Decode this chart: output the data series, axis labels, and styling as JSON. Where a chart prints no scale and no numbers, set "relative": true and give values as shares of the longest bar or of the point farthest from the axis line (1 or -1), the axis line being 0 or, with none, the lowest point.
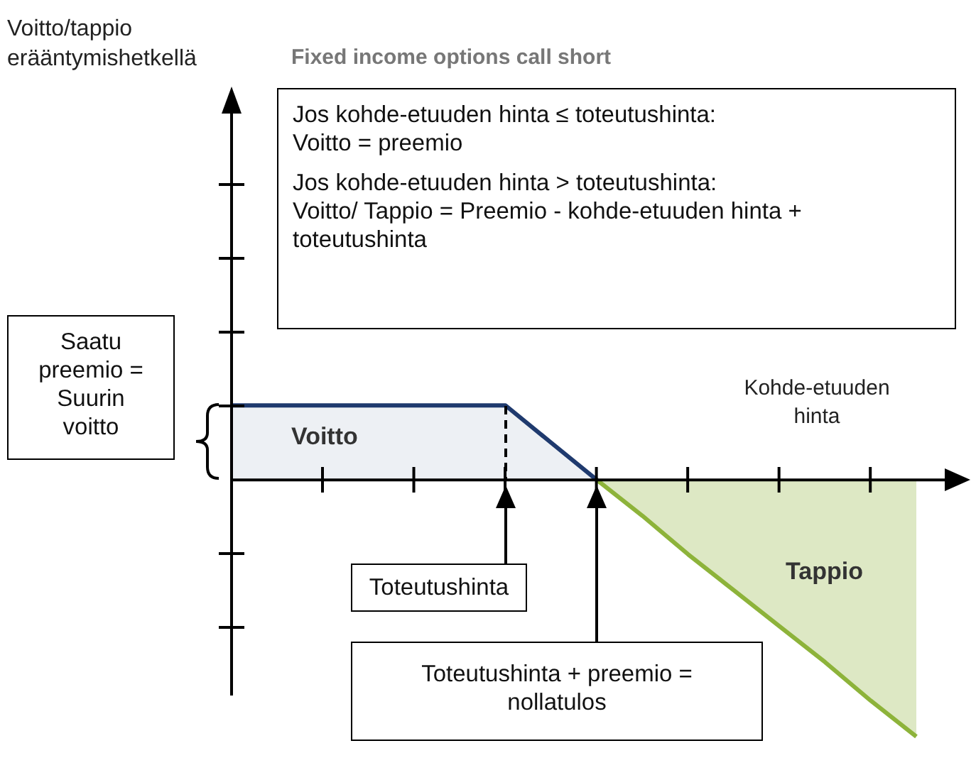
{
  "chart_data": {
    "type": "area",
    "relative": true,
    "title": "Fixed income options call short",
    "xlabel": "Kohde-etuuden hinta",
    "categories": [
      null,
      null,
      null,
      null,
      null,
      null,
      null,
      null,
      null,
      null,
      null,
      null,
      null,
      null,
      null,
      null
    ],
    "series": [
      {
        "name": "Voitto",
        "color": "#1f3a6e",
        "values": [
          0.29,
          0.29,
          0.29,
          0.29,
          0.29,
          0.29,
          0.29,
          0.145,
          0,
          null,
          null,
          null,
          null,
          null,
          null,
          null
        ]
      },
      {
        "name": "Tappio",
        "color": "#8db33a",
        "values": [
          null,
          null,
          null,
          null,
          null,
          null,
          null,
          null,
          0,
          -0.14,
          -0.29,
          -0.43,
          -0.57,
          -0.71,
          -0.86,
          -1
        ]
      }
    ],
    "annotations": [
      "Voitto/tappio erääntymishetkellä",
      "Jos kohde-etuuden hinta ≤ toteutushinta:\nVoitto = preemio",
      "Jos kohde-etuuden hinta > toteutushinta:\nVoitto/ Tappio = Preemio - kohde-etuuden hinta + toteutushinta",
      "Saatu preemio = Suurin voitto",
      "Toteutushinta",
      "Toteutushinta + preemio = nollatulos"
    ]
  }
}
